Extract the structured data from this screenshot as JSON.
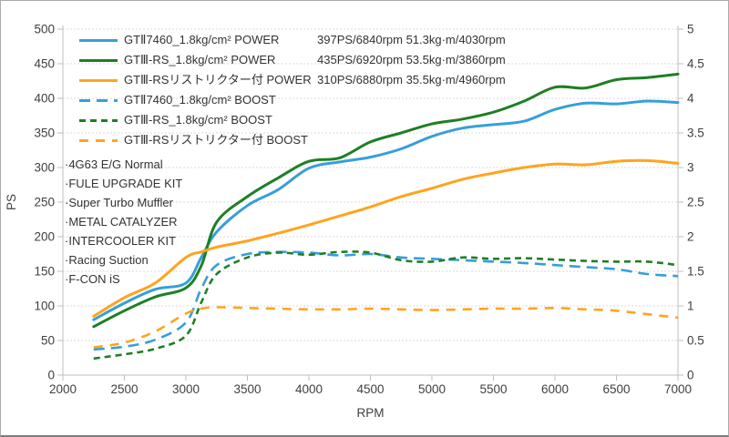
{
  "axes": {
    "x": {
      "label": "RPM",
      "min": 2000,
      "max": 7000,
      "step": 500
    },
    "y_left": {
      "label": "PS",
      "min": 0,
      "max": 500,
      "step": 50
    },
    "y_right": {
      "label": "",
      "min": 0,
      "max": 5,
      "step": 0.5
    }
  },
  "legend": [
    {
      "label": "GTⅡ7460_1.8kg/cm² POWER",
      "stats": "397PS/6840rpm 51.3kg·m/4030rpm",
      "color": "#379fd9",
      "dash": "solid"
    },
    {
      "label": "GTⅢ-RS_1.8kg/cm² POWER",
      "stats": "435PS/6920rpm 53.5kg·m/3860rpm",
      "color": "#1e7f23",
      "dash": "solid"
    },
    {
      "label": "GTⅢ-RSリストリクター付 POWER",
      "stats": "310PS/6880rpm 35.5kg·m/4960rpm",
      "color": "#ffa41e",
      "dash": "solid"
    },
    {
      "label": "GTⅡ7460_1.8kg/cm² BOOST",
      "stats": "",
      "color": "#379fd9",
      "dash": "12 7"
    },
    {
      "label": "GTⅢ-RS_1.8kg/cm² BOOST",
      "stats": "",
      "color": "#1e7f23",
      "dash": "7 5"
    },
    {
      "label": "GTⅢ-RSリストリクター付 BOOST",
      "stats": "",
      "color": "#ffa41e",
      "dash": "10 8"
    }
  ],
  "notes": [
    "·4G63 E/G Normal",
    "·FULE UPGRADE KIT",
    "·Super Turbo Muffler",
    "·METAL CATALYZER",
    "·INTERCOOLER KIT",
    "·Racing Suction",
    "·F-CON iS"
  ],
  "chart_data": {
    "type": "line",
    "title": "",
    "xlabel": "RPM",
    "ylabel_left": "PS",
    "ylabel_right": "",
    "xlim": [
      2000,
      7000
    ],
    "ylim_left": [
      0,
      500
    ],
    "ylim_right": [
      0,
      5
    ],
    "grid": "horizontal",
    "legend_position": "top-left-inside",
    "x": [
      2250,
      2500,
      2750,
      3000,
      3125,
      3250,
      3500,
      3750,
      4000,
      4250,
      4500,
      4750,
      5000,
      5250,
      5500,
      5750,
      6000,
      6250,
      6500,
      6750,
      7000
    ],
    "series": [
      {
        "name": "GTⅡ7460_1.8kg/cm² POWER",
        "axis": "left",
        "style": "solid",
        "color": "#379fd9",
        "width": 3,
        "values": [
          80,
          104,
          124,
          133,
          170,
          207,
          245,
          268,
          299,
          308,
          315,
          327,
          345,
          357,
          362,
          367,
          384,
          393,
          392,
          396,
          394
        ],
        "peak": "397PS/6840rpm 51.3kg·m/4030rpm"
      },
      {
        "name": "GTⅢ-RS_1.8kg/cm² POWER",
        "axis": "left",
        "style": "solid",
        "color": "#1e7f23",
        "width": 3,
        "values": [
          70,
          93,
          113,
          126,
          158,
          221,
          258,
          285,
          309,
          314,
          337,
          350,
          363,
          370,
          380,
          396,
          416,
          415,
          427,
          430,
          435
        ],
        "peak": "435PS/6920rpm 53.5kg·m/3860rpm"
      },
      {
        "name": "GTⅢ-RSリストリクター付 POWER",
        "axis": "left",
        "style": "solid",
        "color": "#ffa41e",
        "width": 3,
        "values": [
          85,
          112,
          133,
          170,
          178,
          185,
          194,
          205,
          217,
          230,
          243,
          258,
          270,
          283,
          292,
          300,
          305,
          304,
          309,
          310,
          306
        ],
        "peak": "310PS/6880rpm 35.5kg·m/4960rpm"
      },
      {
        "name": "GTⅡ7460_1.8kg/cm² BOOST",
        "axis": "right",
        "style": "12 7",
        "color": "#379fd9",
        "width": 2.6,
        "values": [
          0.37,
          0.41,
          0.51,
          0.76,
          1.25,
          1.59,
          1.75,
          1.78,
          1.77,
          1.73,
          1.75,
          1.7,
          1.68,
          1.66,
          1.64,
          1.62,
          1.59,
          1.56,
          1.53,
          1.46,
          1.43
        ]
      },
      {
        "name": "GTⅢ-RS_1.8kg/cm² BOOST",
        "axis": "right",
        "style": "7 5",
        "color": "#1e7f23",
        "width": 2.6,
        "values": [
          0.24,
          0.3,
          0.38,
          0.57,
          1.05,
          1.46,
          1.7,
          1.77,
          1.74,
          1.78,
          1.77,
          1.66,
          1.64,
          1.7,
          1.68,
          1.69,
          1.67,
          1.65,
          1.64,
          1.64,
          1.59
        ]
      },
      {
        "name": "GTⅢ-RSリストリクター付 BOOST",
        "axis": "right",
        "style": "10 8",
        "color": "#ffa41e",
        "width": 2.6,
        "values": [
          0.4,
          0.47,
          0.63,
          0.89,
          0.96,
          0.98,
          0.97,
          0.96,
          0.95,
          0.95,
          0.96,
          0.95,
          0.94,
          0.95,
          0.96,
          0.96,
          0.97,
          0.95,
          0.93,
          0.88,
          0.83
        ]
      }
    ]
  }
}
